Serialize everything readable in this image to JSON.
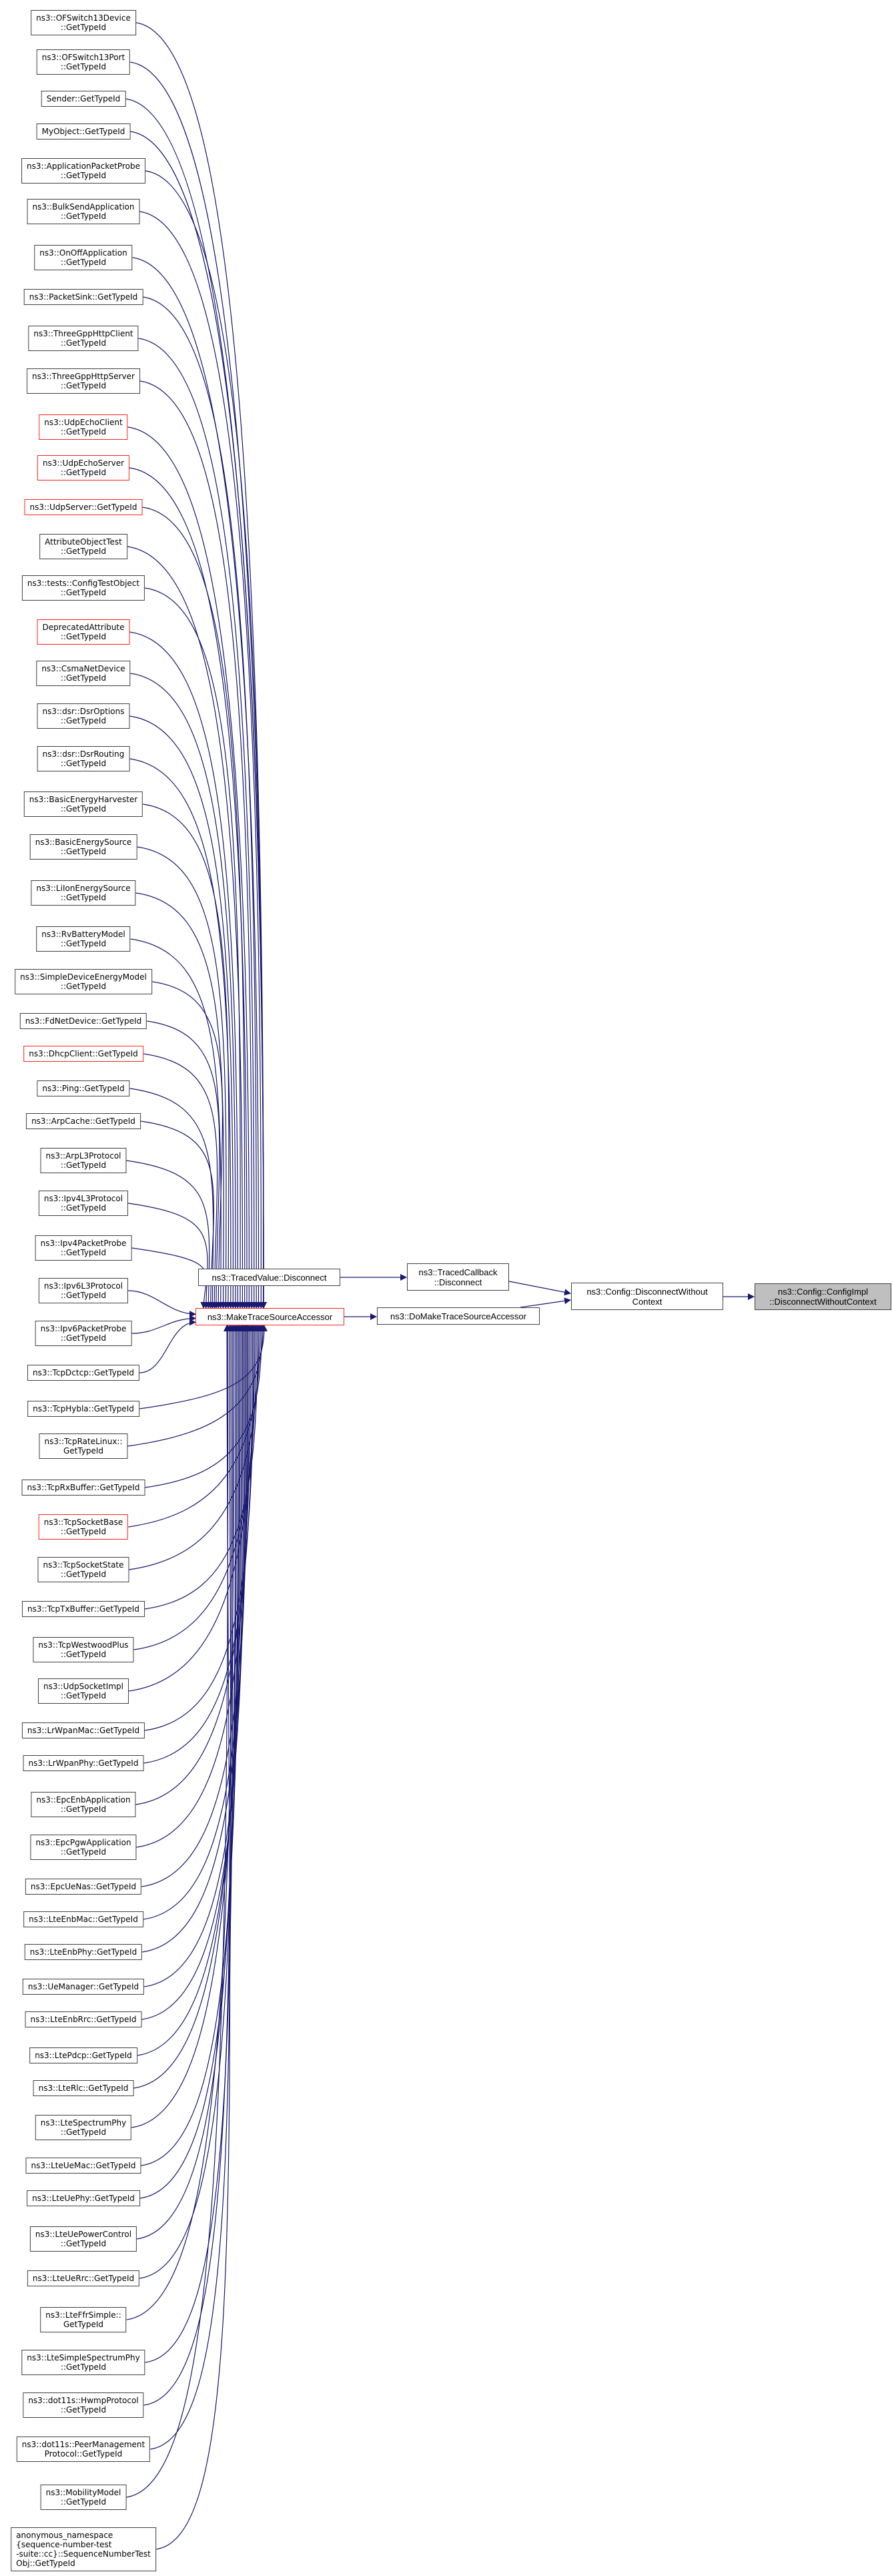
{
  "colors": {
    "edge": "#191970",
    "highlight_border": "#ff2020",
    "node_border": "#404040",
    "focus_fill": "#bfbfbf"
  },
  "callers": [
    {
      "label": "ns3::OFSwitch13Device\n::GetTypeId",
      "red": false
    },
    {
      "label": "ns3::OFSwitch13Port\n::GetTypeId",
      "red": false
    },
    {
      "label": "Sender::GetTypeId",
      "red": false
    },
    {
      "label": "MyObject::GetTypeId",
      "red": false
    },
    {
      "label": "ns3::ApplicationPacketProbe\n::GetTypeId",
      "red": false
    },
    {
      "label": "ns3::BulkSendApplication\n::GetTypeId",
      "red": false
    },
    {
      "label": "ns3::OnOffApplication\n::GetTypeId",
      "red": false
    },
    {
      "label": "ns3::PacketSink::GetTypeId",
      "red": false
    },
    {
      "label": "ns3::ThreeGppHttpClient\n::GetTypeId",
      "red": false
    },
    {
      "label": "ns3::ThreeGppHttpServer\n::GetTypeId",
      "red": false
    },
    {
      "label": "ns3::UdpEchoClient\n::GetTypeId",
      "red": true
    },
    {
      "label": "ns3::UdpEchoServer\n::GetTypeId",
      "red": true
    },
    {
      "label": "ns3::UdpServer::GetTypeId",
      "red": true
    },
    {
      "label": "AttributeObjectTest\n::GetTypeId",
      "red": false
    },
    {
      "label": "ns3::tests::ConfigTestObject\n::GetTypeId",
      "red": false
    },
    {
      "label": "DeprecatedAttribute\n::GetTypeId",
      "red": true
    },
    {
      "label": "ns3::CsmaNetDevice\n::GetTypeId",
      "red": false
    },
    {
      "label": "ns3::dsr::DsrOptions\n::GetTypeId",
      "red": false
    },
    {
      "label": "ns3::dsr::DsrRouting\n::GetTypeId",
      "red": false
    },
    {
      "label": "ns3::BasicEnergyHarvester\n::GetTypeId",
      "red": false
    },
    {
      "label": "ns3::BasicEnergySource\n::GetTypeId",
      "red": false
    },
    {
      "label": "ns3::LiIonEnergySource\n::GetTypeId",
      "red": false
    },
    {
      "label": "ns3::RvBatteryModel\n::GetTypeId",
      "red": false
    },
    {
      "label": "ns3::SimpleDeviceEnergyModel\n::GetTypeId",
      "red": false
    },
    {
      "label": "ns3::FdNetDevice::GetTypeId",
      "red": false
    },
    {
      "label": "ns3::DhcpClient::GetTypeId",
      "red": true
    },
    {
      "label": "ns3::Ping::GetTypeId",
      "red": false
    },
    {
      "label": "ns3::ArpCache::GetTypeId",
      "red": false
    },
    {
      "label": "ns3::ArpL3Protocol\n::GetTypeId",
      "red": false
    },
    {
      "label": "ns3::Ipv4L3Protocol\n::GetTypeId",
      "red": false
    },
    {
      "label": "ns3::Ipv4PacketProbe\n::GetTypeId",
      "red": false
    },
    {
      "label": "ns3::Ipv6L3Protocol\n::GetTypeId",
      "red": false
    },
    {
      "label": "ns3::Ipv6PacketProbe\n::GetTypeId",
      "red": false
    },
    {
      "label": "ns3::TcpDctcp::GetTypeId",
      "red": false
    },
    {
      "label": "ns3::TcpHybla::GetTypeId",
      "red": false
    },
    {
      "label": "ns3::TcpRateLinux::\nGetTypeId",
      "red": false
    },
    {
      "label": "ns3::TcpRxBuffer::GetTypeId",
      "red": false
    },
    {
      "label": "ns3::TcpSocketBase\n::GetTypeId",
      "red": true
    },
    {
      "label": "ns3::TcpSocketState\n::GetTypeId",
      "red": false
    },
    {
      "label": "ns3::TcpTxBuffer::GetTypeId",
      "red": false
    },
    {
      "label": "ns3::TcpWestwoodPlus\n::GetTypeId",
      "red": false
    },
    {
      "label": "ns3::UdpSocketImpl\n::GetTypeId",
      "red": false
    },
    {
      "label": "ns3::LrWpanMac::GetTypeId",
      "red": false
    },
    {
      "label": "ns3::LrWpanPhy::GetTypeId",
      "red": false
    },
    {
      "label": "ns3::EpcEnbApplication\n::GetTypeId",
      "red": false
    },
    {
      "label": "ns3::EpcPgwApplication\n::GetTypeId",
      "red": false
    },
    {
      "label": "ns3::EpcUeNas::GetTypeId",
      "red": false
    },
    {
      "label": "ns3::LteEnbMac::GetTypeId",
      "red": false
    },
    {
      "label": "ns3::LteEnbPhy::GetTypeId",
      "red": false
    },
    {
      "label": "ns3::UeManager::GetTypeId",
      "red": false
    },
    {
      "label": "ns3::LteEnbRrc::GetTypeId",
      "red": false
    },
    {
      "label": "ns3::LtePdcp::GetTypeId",
      "red": false
    },
    {
      "label": "ns3::LteRlc::GetTypeId",
      "red": false
    },
    {
      "label": "ns3::LteSpectrumPhy\n::GetTypeId",
      "red": false
    },
    {
      "label": "ns3::LteUeMac::GetTypeId",
      "red": false
    },
    {
      "label": "ns3::LteUePhy::GetTypeId",
      "red": false
    },
    {
      "label": "ns3::LteUePowerControl\n::GetTypeId",
      "red": false
    },
    {
      "label": "ns3::LteUeRrc::GetTypeId",
      "red": false
    },
    {
      "label": "ns3::LteFfrSimple::\nGetTypeId",
      "red": false
    },
    {
      "label": "ns3::LteSimpleSpectrumPhy\n::GetTypeId",
      "red": false
    },
    {
      "label": "ns3::dot11s::HwmpProtocol\n::GetTypeId",
      "red": false
    },
    {
      "label": "ns3::dot11s::PeerManagement\nProtocol::GetTypeId",
      "red": false
    },
    {
      "label": "ns3::MobilityModel\n::GetTypeId",
      "red": false
    },
    {
      "label": "anonymous_namespace\n{sequence-number-test\n-suite::cc}::SequenceNumberTest\nObj::GetTypeId",
      "red": false
    }
  ],
  "hub": {
    "make_trace_source_accessor": "ns3::MakeTraceSourceAccessor",
    "traced_value_disconnect": "ns3::TracedValue::Disconnect",
    "traced_callback_disconnect": "ns3::TracedCallback\n::Disconnect",
    "do_make_trace_source_accessor": "ns3::DoMakeTraceSourceAccessor",
    "config_disconnect_without_context": "ns3::Config::DisconnectWithout\nContext",
    "config_impl_disconnect_without_context": "ns3::Config::ConfigImpl\n::DisconnectWithoutContext"
  }
}
